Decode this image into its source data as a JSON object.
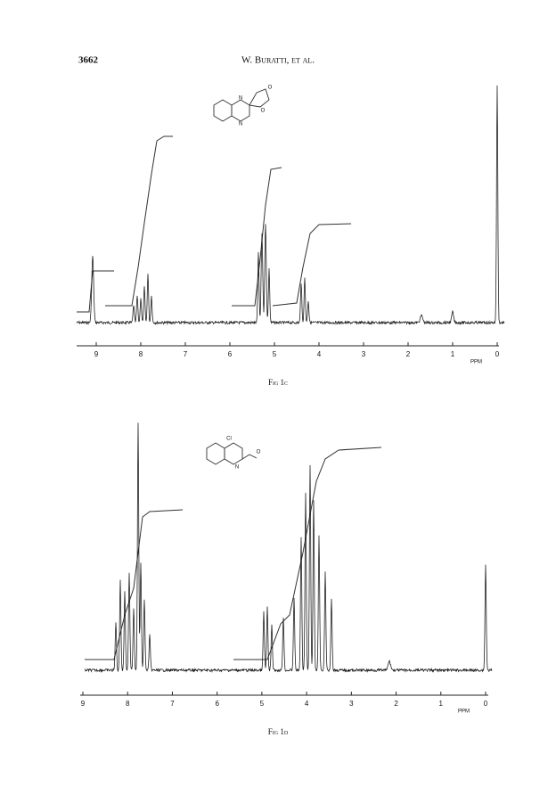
{
  "header": {
    "page_number": "3662",
    "authors": "W. Buratti, et al."
  },
  "figures": [
    {
      "caption": "Fig 1c",
      "unit": "PPM",
      "xlim": [
        9.4,
        0
      ],
      "xticks": [
        9,
        8,
        7,
        6,
        5,
        4,
        3,
        2,
        1,
        0
      ],
      "structure_atoms": [
        "N",
        "N",
        "O",
        "O"
      ]
    },
    {
      "caption": "Fig 1d",
      "unit": "PPM",
      "xlim": [
        9,
        0
      ],
      "xticks": [
        9,
        8,
        7,
        6,
        5,
        4,
        3,
        2,
        1,
        0
      ],
      "structure_atoms": [
        "Cl",
        "N",
        "O"
      ]
    }
  ]
}
